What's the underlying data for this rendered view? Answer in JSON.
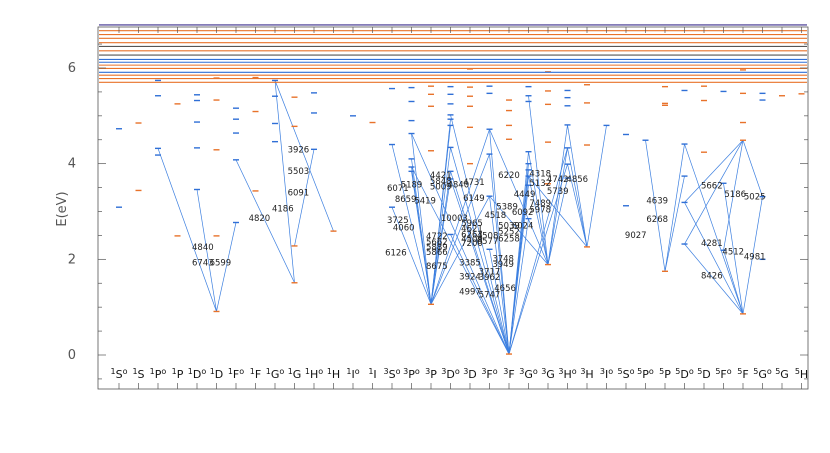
{
  "chart_data": {
    "type": "scatter",
    "ylabel": "E(eV)",
    "ylim": [
      -0.8,
      6.9
    ],
    "yticks": [
      0,
      2,
      4,
      6
    ],
    "colors": {
      "even": "#e8722a",
      "odd": "#2f6fd6",
      "line": "#3c7fe0",
      "axis": "#555555"
    },
    "terms": [
      {
        "L": "S",
        "mult": "1",
        "parity": "o"
      },
      {
        "L": "S",
        "mult": "1",
        "parity": ""
      },
      {
        "L": "P",
        "mult": "1",
        "parity": "o"
      },
      {
        "L": "P",
        "mult": "1",
        "parity": ""
      },
      {
        "L": "D",
        "mult": "1",
        "parity": "o"
      },
      {
        "L": "D",
        "mult": "1",
        "parity": ""
      },
      {
        "L": "F",
        "mult": "1",
        "parity": "o"
      },
      {
        "L": "F",
        "mult": "1",
        "parity": ""
      },
      {
        "L": "G",
        "mult": "1",
        "parity": "o"
      },
      {
        "L": "G",
        "mult": "1",
        "parity": ""
      },
      {
        "L": "H",
        "mult": "1",
        "parity": "o"
      },
      {
        "L": "H",
        "mult": "1",
        "parity": ""
      },
      {
        "L": "I",
        "mult": "1",
        "parity": "o"
      },
      {
        "L": "I",
        "mult": "1",
        "parity": ""
      },
      {
        "L": "S",
        "mult": "3",
        "parity": "o"
      },
      {
        "L": "P",
        "mult": "3",
        "parity": "o"
      },
      {
        "L": "P",
        "mult": "3",
        "parity": ""
      },
      {
        "L": "D",
        "mult": "3",
        "parity": "o"
      },
      {
        "L": "D",
        "mult": "3",
        "parity": ""
      },
      {
        "L": "F",
        "mult": "3",
        "parity": "o"
      },
      {
        "L": "F",
        "mult": "3",
        "parity": ""
      },
      {
        "L": "G",
        "mult": "3",
        "parity": "o"
      },
      {
        "L": "G",
        "mult": "3",
        "parity": ""
      },
      {
        "L": "H",
        "mult": "3",
        "parity": "o"
      },
      {
        "L": "H",
        "mult": "3",
        "parity": ""
      },
      {
        "L": "I",
        "mult": "3",
        "parity": "o"
      },
      {
        "L": "S",
        "mult": "5",
        "parity": "o"
      },
      {
        "L": "P",
        "mult": "5",
        "parity": "o"
      },
      {
        "L": "P",
        "mult": "5",
        "parity": ""
      },
      {
        "L": "D",
        "mult": "5",
        "parity": "o"
      },
      {
        "L": "D",
        "mult": "5",
        "parity": ""
      },
      {
        "L": "F",
        "mult": "5",
        "parity": "o"
      },
      {
        "L": "F",
        "mult": "5",
        "parity": ""
      },
      {
        "L": "G",
        "mult": "5",
        "parity": "o"
      },
      {
        "L": "G",
        "mult": "5",
        "parity": ""
      },
      {
        "L": "H",
        "mult": "5",
        "parity": ""
      }
    ],
    "levels": [
      [
        0,
        4.73
      ],
      [
        0,
        3.09
      ],
      [
        1,
        4.85
      ],
      [
        1,
        3.44
      ],
      [
        2,
        5.74
      ],
      [
        2,
        5.42
      ],
      [
        2,
        4.32
      ],
      [
        2,
        4.18
      ],
      [
        3,
        5.25
      ],
      [
        3,
        2.49
      ],
      [
        4,
        5.44
      ],
      [
        4,
        5.32
      ],
      [
        4,
        4.87
      ],
      [
        4,
        4.33
      ],
      [
        4,
        3.46
      ],
      [
        5,
        5.79
      ],
      [
        5,
        5.33
      ],
      [
        5,
        4.29
      ],
      [
        5,
        2.49
      ],
      [
        5,
        0.91
      ],
      [
        6,
        5.16
      ],
      [
        6,
        4.93
      ],
      [
        6,
        4.64
      ],
      [
        6,
        4.08
      ],
      [
        6,
        2.77
      ],
      [
        7,
        5.8
      ],
      [
        7,
        5.09
      ],
      [
        7,
        3.43
      ],
      [
        8,
        5.74
      ],
      [
        8,
        5.41
      ],
      [
        8,
        4.84
      ],
      [
        8,
        4.46
      ],
      [
        9,
        5.39
      ],
      [
        9,
        4.78
      ],
      [
        9,
        2.28
      ],
      [
        9,
        1.51
      ],
      [
        10,
        5.48
      ],
      [
        10,
        5.06
      ],
      [
        10,
        4.3
      ],
      [
        11,
        2.59
      ],
      [
        12,
        5.0
      ],
      [
        13,
        4.86
      ],
      [
        14,
        5.57
      ],
      [
        14,
        4.4
      ],
      [
        14,
        3.09
      ],
      [
        15,
        5.59
      ],
      [
        15,
        5.3
      ],
      [
        15,
        4.9
      ],
      [
        15,
        4.63
      ],
      [
        15,
        4.1
      ],
      [
        15,
        3.93
      ],
      [
        15,
        3.84
      ],
      [
        16,
        5.62
      ],
      [
        16,
        5.45
      ],
      [
        16,
        5.2
      ],
      [
        16,
        4.27
      ],
      [
        16,
        1.06
      ],
      [
        17,
        5.61
      ],
      [
        17,
        5.45
      ],
      [
        17,
        5.25
      ],
      [
        17,
        5.02
      ],
      [
        17,
        4.93
      ],
      [
        17,
        4.8
      ],
      [
        17,
        4.34
      ],
      [
        17,
        3.84
      ],
      [
        17,
        3.68
      ],
      [
        17,
        2.52
      ],
      [
        18,
        5.98
      ],
      [
        18,
        5.6
      ],
      [
        18,
        5.41
      ],
      [
        18,
        5.2
      ],
      [
        18,
        4.76
      ],
      [
        18,
        4.0
      ],
      [
        19,
        5.62
      ],
      [
        19,
        5.47
      ],
      [
        19,
        4.72
      ],
      [
        19,
        4.2
      ],
      [
        19,
        3.32
      ],
      [
        19,
        2.21
      ],
      [
        20,
        5.33
      ],
      [
        20,
        5.11
      ],
      [
        20,
        4.8
      ],
      [
        20,
        4.51
      ],
      [
        20,
        0.02
      ],
      [
        21,
        5.61
      ],
      [
        21,
        5.42
      ],
      [
        21,
        5.3
      ],
      [
        21,
        4.25
      ],
      [
        21,
        4.0
      ],
      [
        21,
        3.87
      ],
      [
        21,
        3.74
      ],
      [
        21,
        3.55
      ],
      [
        21,
        2.85
      ],
      [
        22,
        5.92
      ],
      [
        22,
        5.52
      ],
      [
        22,
        5.24
      ],
      [
        22,
        4.45
      ],
      [
        22,
        3.58
      ],
      [
        22,
        1.89
      ],
      [
        23,
        5.53
      ],
      [
        23,
        5.38
      ],
      [
        23,
        5.21
      ],
      [
        23,
        4.81
      ],
      [
        23,
        4.33
      ],
      [
        23,
        3.99
      ],
      [
        23,
        3.7
      ],
      [
        24,
        5.65
      ],
      [
        24,
        5.27
      ],
      [
        24,
        4.39
      ],
      [
        24,
        2.26
      ],
      [
        25,
        4.8
      ],
      [
        26,
        4.61
      ],
      [
        26,
        3.12
      ],
      [
        27,
        4.49
      ],
      [
        28,
        5.61
      ],
      [
        28,
        5.26
      ],
      [
        28,
        5.22
      ],
      [
        28,
        1.75
      ],
      [
        29,
        5.53
      ],
      [
        29,
        4.41
      ],
      [
        29,
        3.74
      ],
      [
        29,
        3.19
      ],
      [
        29,
        2.32
      ],
      [
        30,
        5.62
      ],
      [
        30,
        5.32
      ],
      [
        30,
        4.24
      ],
      [
        31,
        5.51
      ],
      [
        31,
        3.59
      ],
      [
        31,
        2.19
      ],
      [
        32,
        5.96
      ],
      [
        32,
        5.47
      ],
      [
        32,
        4.86
      ],
      [
        32,
        4.49
      ],
      [
        32,
        0.86
      ],
      [
        33,
        5.47
      ],
      [
        33,
        5.33
      ],
      [
        33,
        3.31
      ],
      [
        33,
        2.0
      ],
      [
        34,
        5.42
      ],
      [
        35,
        5.46
      ]
    ],
    "top_levels": [
      {
        "e": 6.9,
        "color": "#3b2e8c"
      },
      {
        "e": 6.78,
        "color": "#e8722a"
      },
      {
        "e": 6.7,
        "color": "#e8722a"
      },
      {
        "e": 6.62,
        "color": "#e8722a"
      },
      {
        "e": 6.53,
        "color": "#e8722a"
      },
      {
        "e": 6.45,
        "color": "#555555"
      },
      {
        "e": 6.36,
        "color": "#e8722a"
      },
      {
        "e": 6.27,
        "color": "#555555"
      },
      {
        "e": 6.18,
        "color": "#2f6fd6"
      },
      {
        "e": 6.12,
        "color": "#2f6fd6"
      },
      {
        "e": 6.06,
        "color": "#e8722a"
      },
      {
        "e": 5.99,
        "color": "#e8722a"
      },
      {
        "e": 5.91,
        "color": "#2f6fd6"
      },
      {
        "e": 5.85,
        "color": "#e8722a"
      },
      {
        "e": 5.78,
        "color": "#e8722a"
      },
      {
        "e": 5.7,
        "color": "#e8722a"
      }
    ],
    "transitions": [
      [
        5,
        0.91,
        4,
        3.46
      ],
      [
        5,
        0.91,
        2,
        4.32
      ],
      [
        5,
        0.91,
        6,
        2.77
      ],
      [
        9,
        1.51,
        8,
        5.74
      ],
      [
        9,
        1.51,
        6,
        4.08
      ],
      [
        9,
        2.28,
        10,
        4.3
      ],
      [
        11,
        2.59,
        8,
        5.74
      ],
      [
        16,
        1.06,
        17,
        4.93
      ],
      [
        16,
        1.06,
        17,
        4.8
      ],
      [
        16,
        1.06,
        15,
        4.63
      ],
      [
        16,
        1.06,
        17,
        4.34
      ],
      [
        16,
        1.06,
        15,
        4.1
      ],
      [
        16,
        1.06,
        15,
        3.93
      ],
      [
        16,
        1.06,
        17,
        3.84
      ],
      [
        16,
        1.06,
        17,
        3.68
      ],
      [
        16,
        1.06,
        14,
        4.4
      ],
      [
        16,
        1.06,
        14,
        3.09
      ],
      [
        16,
        1.06,
        19,
        4.72
      ],
      [
        16,
        1.06,
        19,
        4.2
      ],
      [
        16,
        1.06,
        19,
        3.32
      ],
      [
        16,
        1.06,
        15,
        3.84
      ],
      [
        20,
        0.02,
        17,
        5.02
      ],
      [
        20,
        0.02,
        17,
        4.34
      ],
      [
        20,
        0.02,
        17,
        3.84
      ],
      [
        20,
        0.02,
        17,
        3.68
      ],
      [
        20,
        0.02,
        17,
        2.52
      ],
      [
        20,
        0.02,
        19,
        4.72
      ],
      [
        20,
        0.02,
        19,
        4.2
      ],
      [
        20,
        0.02,
        19,
        3.32
      ],
      [
        20,
        0.02,
        19,
        2.21
      ],
      [
        20,
        0.02,
        21,
        4.25
      ],
      [
        20,
        0.02,
        21,
        4.0
      ],
      [
        20,
        0.02,
        21,
        3.87
      ],
      [
        20,
        0.02,
        21,
        3.74
      ],
      [
        20,
        0.02,
        21,
        3.55
      ],
      [
        20,
        0.02,
        21,
        2.85
      ],
      [
        20,
        0.02,
        15,
        4.63
      ],
      [
        20,
        0.02,
        15,
        3.93
      ],
      [
        20,
        0.02,
        23,
        4.33
      ],
      [
        20,
        0.02,
        23,
        3.99
      ],
      [
        22,
        1.89,
        21,
        5.42
      ],
      [
        22,
        1.89,
        21,
        4.25
      ],
      [
        22,
        1.89,
        21,
        3.74
      ],
      [
        22,
        1.89,
        23,
        4.33
      ],
      [
        22,
        1.89,
        23,
        3.7
      ],
      [
        22,
        1.89,
        19,
        3.32
      ],
      [
        22,
        1.89,
        19,
        4.72
      ],
      [
        22,
        1.89,
        23,
        4.81
      ],
      [
        24,
        2.26,
        23,
        4.81
      ],
      [
        24,
        2.26,
        23,
        4.33
      ],
      [
        24,
        2.26,
        25,
        4.8
      ],
      [
        24,
        2.26,
        21,
        3.74
      ],
      [
        24,
        2.26,
        23,
        3.99
      ],
      [
        28,
        1.75,
        29,
        4.41
      ],
      [
        28,
        1.75,
        29,
        3.74
      ],
      [
        28,
        1.75,
        27,
        4.49
      ],
      [
        32,
        0.86,
        31,
        3.59
      ],
      [
        32,
        0.86,
        29,
        4.41
      ],
      [
        32,
        0.86,
        31,
        2.19
      ],
      [
        32,
        0.86,
        33,
        3.31
      ],
      [
        32,
        0.86,
        29,
        3.19
      ],
      [
        32,
        0.86,
        29,
        2.32
      ],
      [
        32,
        4.49,
        31,
        2.19
      ],
      [
        32,
        4.49,
        33,
        3.31
      ],
      [
        32,
        4.49,
        29,
        3.19
      ],
      [
        32,
        4.49,
        29,
        2.32
      ]
    ],
    "labels": [
      {
        "text": "4840",
        "x": 4.3,
        "y": 2.2
      },
      {
        "text": "6743",
        "x": 4.3,
        "y": 1.87
      },
      {
        "text": "6599",
        "x": 5.2,
        "y": 1.87
      },
      {
        "text": "4820",
        "x": 7.2,
        "y": 2.8
      },
      {
        "text": "4186",
        "x": 8.4,
        "y": 3.0
      },
      {
        "text": "3926",
        "x": 9.2,
        "y": 4.23
      },
      {
        "text": "5503",
        "x": 9.2,
        "y": 3.78
      },
      {
        "text": "6091",
        "x": 9.2,
        "y": 3.33
      },
      {
        "text": "3725",
        "x": 14.3,
        "y": 2.76
      },
      {
        "text": "4060",
        "x": 14.6,
        "y": 2.6
      },
      {
        "text": "6126",
        "x": 14.2,
        "y": 2.08
      },
      {
        "text": "6071",
        "x": 14.3,
        "y": 3.43
      },
      {
        "text": "5189",
        "x": 15.0,
        "y": 3.5
      },
      {
        "text": "8659",
        "x": 14.7,
        "y": 3.2
      },
      {
        "text": "5419",
        "x": 15.7,
        "y": 3.17
      },
      {
        "text": "4421",
        "x": 16.5,
        "y": 3.7
      },
      {
        "text": "5848",
        "x": 16.5,
        "y": 3.58
      },
      {
        "text": "5009",
        "x": 16.5,
        "y": 3.46
      },
      {
        "text": "4840",
        "x": 17.4,
        "y": 3.5
      },
      {
        "text": "4731",
        "x": 18.2,
        "y": 3.55
      },
      {
        "text": "6149",
        "x": 18.2,
        "y": 3.22
      },
      {
        "text": "10003",
        "x": 17.2,
        "y": 2.8
      },
      {
        "text": "4722",
        "x": 16.3,
        "y": 2.43
      },
      {
        "text": "5662",
        "x": 16.3,
        "y": 2.3
      },
      {
        "text": "5889",
        "x": 16.3,
        "y": 2.2
      },
      {
        "text": "5866",
        "x": 16.3,
        "y": 2.09
      },
      {
        "text": "8675",
        "x": 16.3,
        "y": 1.8
      },
      {
        "text": "5965",
        "x": 18.1,
        "y": 2.7
      },
      {
        "text": "4621",
        "x": 18.1,
        "y": 2.58
      },
      {
        "text": "6263",
        "x": 18.1,
        "y": 2.46
      },
      {
        "text": "4509",
        "x": 18.1,
        "y": 2.36
      },
      {
        "text": "7200",
        "x": 18.1,
        "y": 2.28
      },
      {
        "text": "4508",
        "x": 18.9,
        "y": 2.44
      },
      {
        "text": "6577",
        "x": 18.9,
        "y": 2.32
      },
      {
        "text": "3385",
        "x": 18.0,
        "y": 1.87
      },
      {
        "text": "3924",
        "x": 18.0,
        "y": 1.58
      },
      {
        "text": "3717",
        "x": 19.0,
        "y": 1.68
      },
      {
        "text": "3962",
        "x": 19.0,
        "y": 1.57
      },
      {
        "text": "3748",
        "x": 19.7,
        "y": 1.95
      },
      {
        "text": "3949",
        "x": 19.7,
        "y": 1.84
      },
      {
        "text": "4997",
        "x": 18.0,
        "y": 1.26
      },
      {
        "text": "5747",
        "x": 19.0,
        "y": 1.2
      },
      {
        "text": "4656",
        "x": 19.8,
        "y": 1.34
      },
      {
        "text": "6220",
        "x": 20.0,
        "y": 3.7
      },
      {
        "text": "4518",
        "x": 19.3,
        "y": 2.86
      },
      {
        "text": "5389",
        "x": 19.9,
        "y": 3.04
      },
      {
        "text": "5039",
        "x": 20.0,
        "y": 2.64
      },
      {
        "text": "6024",
        "x": 20.7,
        "y": 2.64
      },
      {
        "text": "5252",
        "x": 20.0,
        "y": 2.52
      },
      {
        "text": "6258",
        "x": 20.0,
        "y": 2.37
      },
      {
        "text": "6092",
        "x": 20.7,
        "y": 2.93
      },
      {
        "text": "4449",
        "x": 20.8,
        "y": 3.3
      },
      {
        "text": "5132",
        "x": 21.6,
        "y": 3.53
      },
      {
        "text": "4318",
        "x": 21.6,
        "y": 3.73
      },
      {
        "text": "7489",
        "x": 21.6,
        "y": 3.12
      },
      {
        "text": "5978",
        "x": 21.6,
        "y": 2.98
      },
      {
        "text": "4742",
        "x": 22.5,
        "y": 3.62
      },
      {
        "text": "5739",
        "x": 22.5,
        "y": 3.37
      },
      {
        "text": "4856",
        "x": 23.5,
        "y": 3.62
      },
      {
        "text": "9027",
        "x": 26.5,
        "y": 2.45
      },
      {
        "text": "4639",
        "x": 27.6,
        "y": 3.17
      },
      {
        "text": "6268",
        "x": 27.6,
        "y": 2.78
      },
      {
        "text": "5662",
        "x": 30.4,
        "y": 3.48
      },
      {
        "text": "5186",
        "x": 31.6,
        "y": 3.3
      },
      {
        "text": "5025",
        "x": 32.6,
        "y": 3.25
      },
      {
        "text": "4281",
        "x": 30.4,
        "y": 2.28
      },
      {
        "text": "4512",
        "x": 31.5,
        "y": 2.1
      },
      {
        "text": "4981",
        "x": 32.6,
        "y": 2.0
      },
      {
        "text": "8426",
        "x": 30.4,
        "y": 1.6
      }
    ]
  }
}
